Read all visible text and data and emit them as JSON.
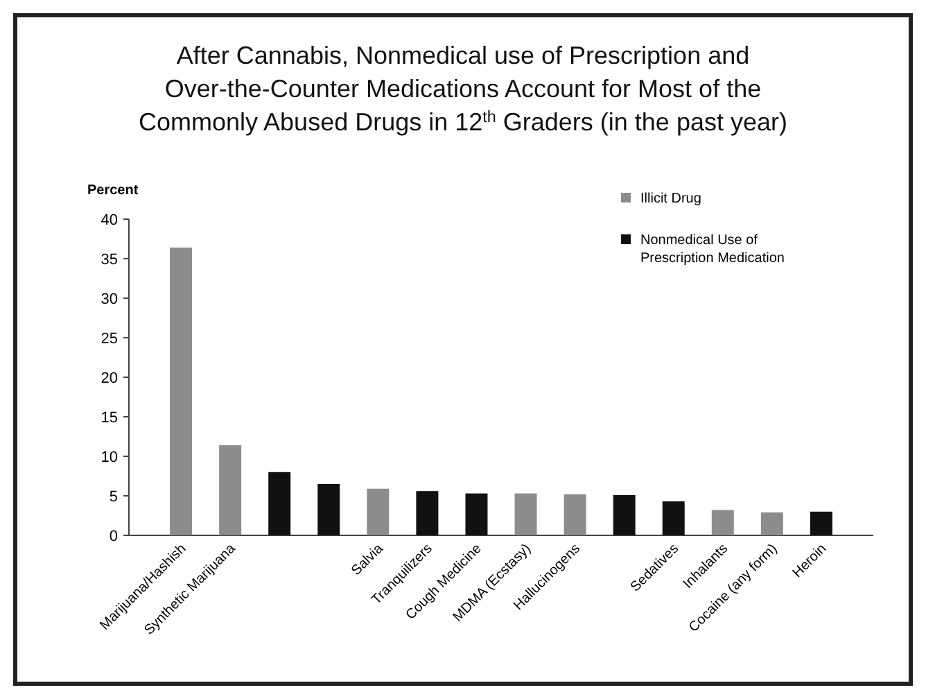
{
  "chart_data": {
    "type": "bar",
    "title": "After Cannabis, Nonmedical use of Prescription and Over-the-Counter Medications Account for Most of the Commonly Abused Drugs in 12$^{th}$ Graders (in the past year)",
    "ylabel": "Percent",
    "categories": [
      "Marijuana/Hashish",
      "Synthetic Marijuana",
      null,
      null,
      "Salvia",
      "Tranquilizers",
      "Cough Medicine",
      "MDMA (Ecstasy)",
      "Hallucinogens",
      null,
      "Sedatives",
      "Inhalants",
      "Cocaine (any form)",
      "Heroin"
    ],
    "series": [
      {
        "name": "Illicit Drug",
        "color": "#8c8c8c",
        "values": [
          36.4,
          11.4,
          null,
          null,
          5.9,
          null,
          null,
          5.3,
          5.2,
          null,
          null,
          3.2,
          2.9,
          null
        ]
      },
      {
        "name": "Nonmedical Use of Prescription Medication",
        "color": "#111111",
        "values": [
          null,
          null,
          8,
          6.5,
          null,
          5.6,
          5.3,
          null,
          null,
          5.1,
          4.3,
          null,
          null,
          3
        ]
      }
    ],
    "ylim": [
      0,
      40
    ],
    "yticks": [
      0,
      5,
      10,
      15,
      20,
      25,
      30,
      35,
      40
    ],
    "grid": false,
    "legend": "top right"
  }
}
